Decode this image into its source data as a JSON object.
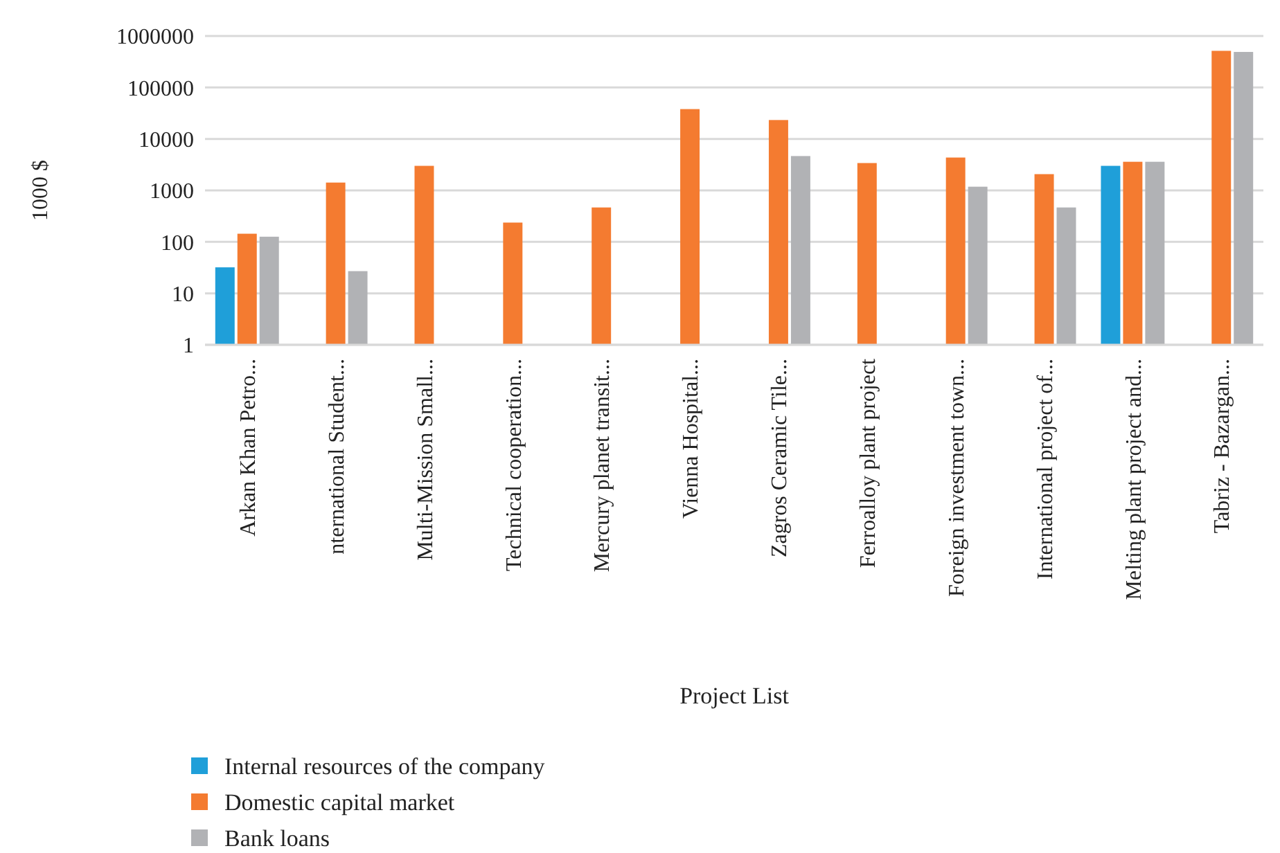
{
  "chart_data": {
    "type": "bar",
    "xlabel": "Project List",
    "ylabel": "1000 $",
    "categories": [
      "Arkan Khan Petro...",
      "nternational Student...",
      "Multi-Mission Small...",
      "Technical cooperation...",
      "Mercury planet transit...",
      "Vienna Hospital...",
      "Zagros Ceramic Tile...",
      "Ferroalloy plant project",
      "Foreign investment town...",
      "International project of...",
      "Melting plant project and...",
      "Tabriz - Bazargan..."
    ],
    "series": [
      {
        "name": "Internal resources of the company",
        "color": "#1f9fd9",
        "values": [
          32,
          null,
          null,
          null,
          null,
          null,
          null,
          null,
          null,
          null,
          3000,
          null
        ]
      },
      {
        "name": "Domestic capital market",
        "color": "#f47b30",
        "values": [
          144,
          1420,
          3000,
          237,
          466,
          38000,
          23300,
          3400,
          4350,
          2070,
          3600,
          515000
        ]
      },
      {
        "name": "Bank loans",
        "color": "#b1b2b5",
        "values": [
          126,
          27,
          null,
          null,
          null,
          null,
          4650,
          null,
          1180,
          466,
          3600,
          490000
        ]
      }
    ],
    "log": "y",
    "ylim": [
      1,
      1000000
    ],
    "yticks": [
      1,
      10,
      100,
      1000,
      10000,
      100000,
      1000000
    ],
    "grid": "y",
    "legend": "bottom left"
  }
}
